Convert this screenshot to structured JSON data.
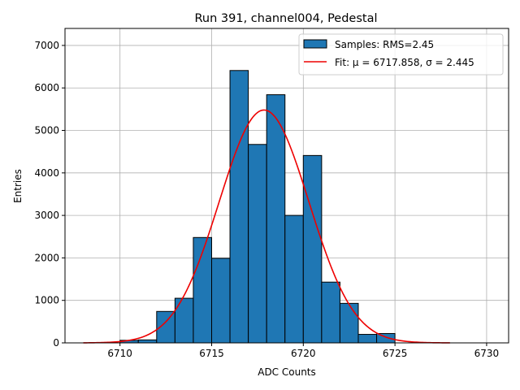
{
  "chart_data": {
    "type": "bar",
    "title": "Run 391, channel004, Pedestal",
    "xlabel": "ADC Counts",
    "ylabel": "Entries",
    "xlim": [
      6707.0,
      6731.2
    ],
    "ylim": [
      0,
      7400
    ],
    "grid": true,
    "legend_position": "top-right",
    "xticks": [
      6710,
      6715,
      6720,
      6725,
      6730
    ],
    "yticks": [
      0,
      1000,
      2000,
      3000,
      4000,
      5000,
      6000,
      7000
    ],
    "bin_width": 1,
    "bins": [
      {
        "left": 6710,
        "count": 60
      },
      {
        "left": 6711,
        "count": 70
      },
      {
        "left": 6712,
        "count": 740
      },
      {
        "left": 6713,
        "count": 1050
      },
      {
        "left": 6714,
        "count": 2480
      },
      {
        "left": 6715,
        "count": 1990
      },
      {
        "left": 6716,
        "count": 6410
      },
      {
        "left": 6717,
        "count": 4670
      },
      {
        "left": 6718,
        "count": 5840
      },
      {
        "left": 6719,
        "count": 3000
      },
      {
        "left": 6720,
        "count": 4410
      },
      {
        "left": 6721,
        "count": 1430
      },
      {
        "left": 6722,
        "count": 930
      },
      {
        "left": 6723,
        "count": 200
      },
      {
        "left": 6724,
        "count": 220
      }
    ],
    "fit": {
      "mu": 6717.858,
      "sigma": 2.445,
      "amplitude": 5480,
      "x_range": [
        6708,
        6728
      ]
    },
    "series": [
      {
        "name": "Samples: RMS=2.45",
        "kind": "histogram",
        "color": "#1f77b4"
      },
      {
        "name": "Fit: μ = 6717.858, σ = 2.445",
        "kind": "line",
        "color": "#ee0000"
      }
    ]
  }
}
